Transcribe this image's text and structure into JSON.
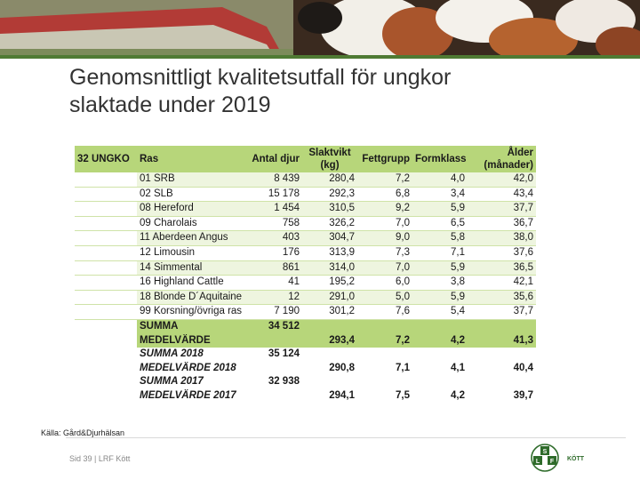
{
  "title": {
    "line1": "Genomsnittligt kvalitetsutfall för ungkor",
    "line2": "slaktade under 2019"
  },
  "table": {
    "headers": {
      "code": "32 UNGKO",
      "breed": "Ras",
      "count": "Antal djur",
      "weight_line1": "Slaktvikt",
      "weight_line2": "(kg)",
      "fat": "Fettgrupp",
      "form": "Formklass",
      "age_line1": "Ålder",
      "age_line2": "(månader)"
    },
    "rows": [
      {
        "breed": "01 SRB",
        "count": "8 439",
        "weight": "280,4",
        "fat": "7,2",
        "form": "4,0",
        "age": "42,0"
      },
      {
        "breed": "02 SLB",
        "count": "15 178",
        "weight": "292,3",
        "fat": "6,8",
        "form": "3,4",
        "age": "43,4"
      },
      {
        "breed": "08 Hereford",
        "count": "1 454",
        "weight": "310,5",
        "fat": "9,2",
        "form": "5,9",
        "age": "37,7"
      },
      {
        "breed": "09 Charolais",
        "count": "758",
        "weight": "326,2",
        "fat": "7,0",
        "form": "6,5",
        "age": "36,7"
      },
      {
        "breed": "11 Aberdeen Angus",
        "count": "403",
        "weight": "304,7",
        "fat": "9,0",
        "form": "5,8",
        "age": "38,0"
      },
      {
        "breed": "12 Limousin",
        "count": "176",
        "weight": "313,9",
        "fat": "7,3",
        "form": "7,1",
        "age": "37,6"
      },
      {
        "breed": "14 Simmental",
        "count": "861",
        "weight": "314,0",
        "fat": "7,0",
        "form": "5,9",
        "age": "36,5"
      },
      {
        "breed": "16 Highland Cattle",
        "count": "41",
        "weight": "195,2",
        "fat": "6,0",
        "form": "3,8",
        "age": "42,1"
      },
      {
        "breed": "18 Blonde D´Aquitaine",
        "count": "12",
        "weight": "291,0",
        "fat": "5,0",
        "form": "5,9",
        "age": "35,6"
      },
      {
        "breed": "99 Korsning/övriga ras",
        "count": "7 190",
        "weight": "301,2",
        "fat": "7,6",
        "form": "5,4",
        "age": "37,7"
      }
    ],
    "summary_2019": {
      "sum_label": "SUMMA",
      "sum_count": "34 512",
      "mean_label": "MEDELVÄRDE",
      "weight": "293,4",
      "fat": "7,2",
      "form": "4,2",
      "age": "41,3"
    },
    "summary_2018": {
      "sum_label": "SUMMA 2018",
      "sum_count": "35 124",
      "mean_label": "MEDELVÄRDE 2018",
      "weight": "290,8",
      "fat": "7,1",
      "form": "4,1",
      "age": "40,4"
    },
    "summary_2017": {
      "sum_label": "SUMMA 2017",
      "sum_count": "32 938",
      "mean_label": "MEDELVÄRDE 2017",
      "weight": "294,1",
      "fat": "7,5",
      "form": "4,2",
      "age": "39,7"
    }
  },
  "source": "Källa: Gård&Djurhälsan",
  "footer": "Sid 39 | LRF Kött",
  "logo": {
    "text": "KÖTT",
    "letters": [
      "S",
      "L",
      "F"
    ]
  },
  "colors": {
    "header_green": "#b7d67a",
    "stripe_green": "#eef5df",
    "logo_green": "#2e6b2a"
  }
}
